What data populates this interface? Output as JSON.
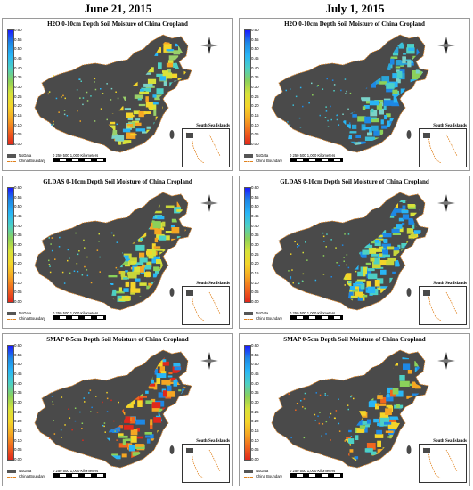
{
  "columns": [
    {
      "title": "June 21, 2015"
    },
    {
      "title": "July 1, 2015"
    }
  ],
  "panels": [
    {
      "title": "H2O 0-10cm Depth Soil Moisture of China Cropland",
      "scheme": "h2o_june"
    },
    {
      "title": "H2O 0-10cm Depth Soil Moisture of China Cropland",
      "scheme": "h2o_july"
    },
    {
      "title": "GLDAS 0-10cm Depth Soil Moisture of China Cropland",
      "scheme": "gldas_june"
    },
    {
      "title": "GLDAS 0-10cm Depth Soil Moisture of China Cropland",
      "scheme": "gldas_july"
    },
    {
      "title": "SMAP 0-5cm Depth Soil Moisture of China Cropland",
      "scheme": "smap_june"
    },
    {
      "title": "SMAP 0-5cm Depth Soil Moisture of China Cropland",
      "scheme": "smap_july"
    }
  ],
  "colorbar": {
    "ticks": [
      "0.60",
      "0.55",
      "0.50",
      "0.45",
      "0.40",
      "0.35",
      "0.30",
      "0.25",
      "0.20",
      "0.15",
      "0.10",
      "0.05",
      "0.00"
    ],
    "colors": [
      "#1a1aff",
      "#1e88e5",
      "#29b6f6",
      "#4dd0c4",
      "#8bd15a",
      "#d7e23a",
      "#f4d52a",
      "#f5a623",
      "#f0661e",
      "#e0281c"
    ]
  },
  "legend": {
    "nodata": "NoData",
    "boundary": "China Boundary"
  },
  "scale": {
    "label": "0    250  500          1,000 Kilometers"
  },
  "inset": {
    "title": "South Sea Islands"
  },
  "compass": {
    "north_label": "N"
  },
  "colors": {
    "nodata": "#4a4a4a",
    "boundary": "#e0821e"
  }
}
